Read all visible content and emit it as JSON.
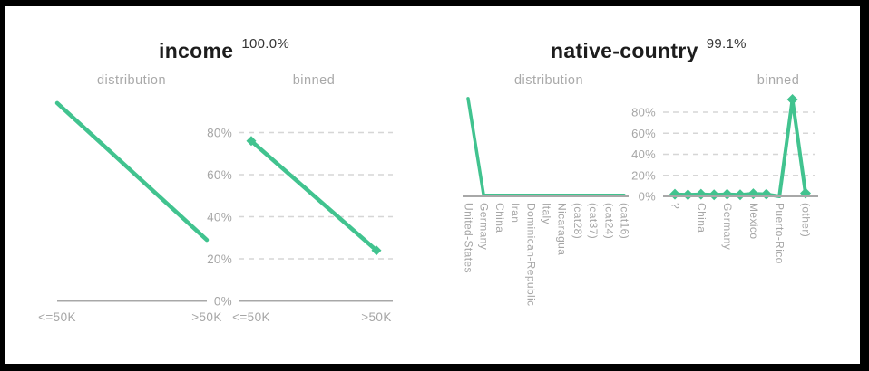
{
  "panel": {
    "background": "#ffffff",
    "frame_color": "#000000"
  },
  "colors": {
    "line": "#41c38f",
    "axis": "#a8a8a8",
    "grid": "#d6d6d6",
    "tick_label": "#a6a6a6",
    "title": "#1d1d1d",
    "score": "#333333",
    "subtitle": "#a9a9a9"
  },
  "features": [
    {
      "name": "income",
      "score": "100.0%"
    },
    {
      "name": "native-country",
      "score": "99.1%"
    }
  ],
  "chart_data": [
    {
      "feature": "income",
      "panel": "distribution",
      "type": "line",
      "categories": [
        "<=50K",
        ">50K"
      ],
      "values": [
        94,
        29
      ],
      "ylim": [
        0,
        100
      ],
      "grid": false,
      "y_axis_labels": [],
      "markers": false
    },
    {
      "feature": "income",
      "panel": "binned",
      "type": "line",
      "categories": [
        "<=50K",
        ">50K"
      ],
      "values": [
        76,
        24
      ],
      "ylim": [
        0,
        100
      ],
      "grid": true,
      "y_axis_labels": [
        "80%",
        "60%",
        "40%",
        "20%",
        "0%"
      ],
      "markers": true
    },
    {
      "feature": "native-country",
      "panel": "distribution",
      "type": "line",
      "categories": [
        "United-States",
        "Germany",
        "China",
        "Iran",
        "Dominican-Republic",
        "Italy",
        "Nicaragua",
        "(cat28)",
        "(cat37)",
        "(cat24)",
        "(cat16)"
      ],
      "values": [
        93,
        1,
        1,
        1,
        1,
        1,
        1,
        1,
        1,
        1,
        1
      ],
      "ylim": [
        0,
        100
      ],
      "grid": false,
      "y_axis_labels": [],
      "markers": false
    },
    {
      "feature": "native-country",
      "panel": "binned",
      "type": "line",
      "categories": [
        "?",
        "",
        "China",
        "",
        "Germany",
        "",
        "Mexico",
        "",
        "Puerto-Rico",
        "",
        "(other)"
      ],
      "values": [
        2,
        1.5,
        2,
        1.5,
        2,
        1.5,
        2.5,
        2,
        0,
        92,
        3
      ],
      "ylim": [
        0,
        100
      ],
      "grid": true,
      "y_axis_labels": [
        "80%",
        "60%",
        "40%",
        "20%",
        "0%"
      ],
      "markers": true
    }
  ]
}
